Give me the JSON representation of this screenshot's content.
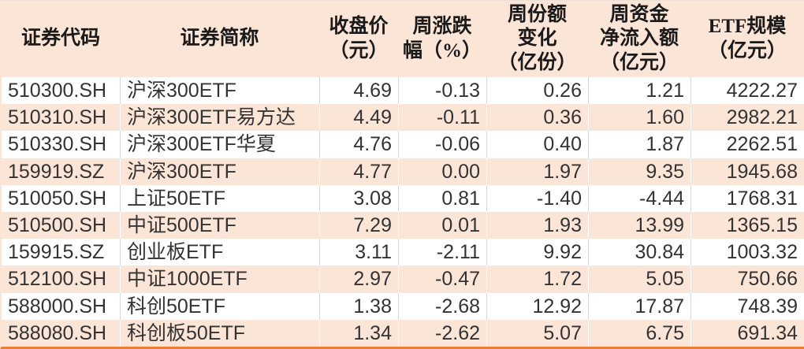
{
  "table": {
    "columns": [
      {
        "key": "code",
        "label": "证券代码",
        "align": "left"
      },
      {
        "key": "name",
        "label": "证券简称",
        "align": "left"
      },
      {
        "key": "close",
        "label": "收盘价\n（元）",
        "align": "right"
      },
      {
        "key": "chg",
        "label": "周涨跌\n幅（%）",
        "align": "right"
      },
      {
        "key": "share",
        "label": "周份额\n变化\n（亿份）",
        "align": "right"
      },
      {
        "key": "flow",
        "label": "周资金\n净流入额\n（亿元）",
        "align": "right"
      },
      {
        "key": "scale",
        "label": "ETF规模\n（亿元）",
        "align": "right"
      }
    ],
    "rows": [
      [
        "510300.SH",
        "沪深300ETF",
        "4.69",
        "-0.13",
        "0.26",
        "1.21",
        "4222.27"
      ],
      [
        "510310.SH",
        "沪深300ETF易方达",
        "4.49",
        "-0.11",
        "0.36",
        "1.60",
        "2982.21"
      ],
      [
        "510330.SH",
        "沪深300ETF华夏",
        "4.76",
        "-0.06",
        "0.40",
        "1.87",
        "2262.51"
      ],
      [
        "159919.SZ",
        "沪深300ETF",
        "4.77",
        "0.00",
        "1.97",
        "9.35",
        "1945.68"
      ],
      [
        "510050.SH",
        "上证50ETF",
        "3.08",
        "0.81",
        "-1.40",
        "-4.44",
        "1768.31"
      ],
      [
        "510500.SH",
        "中证500ETF",
        "7.29",
        "0.01",
        "1.93",
        "13.99",
        "1365.15"
      ],
      [
        "159915.SZ",
        "创业板ETF",
        "3.11",
        "-2.11",
        "9.92",
        "30.84",
        "1003.32"
      ],
      [
        "512100.SH",
        "中证1000ETF",
        "2.97",
        "-0.47",
        "1.72",
        "5.05",
        "750.66"
      ],
      [
        "588000.SH",
        "科创50ETF",
        "1.38",
        "-2.68",
        "12.92",
        "17.87",
        "748.39"
      ],
      [
        "588080.SH",
        "科创板50ETF",
        "1.34",
        "-2.62",
        "5.07",
        "6.75",
        "691.34"
      ]
    ]
  },
  "colors": {
    "header_bg": "#fbe5d6",
    "row_bg": "#ffffff",
    "row_alt_bg": "#fbe5d6",
    "bottom_border": "#ed7d31",
    "grid_line_on_white": "#d9d9d9",
    "grid_line_on_peach": "#ffffff",
    "text": "#333333",
    "header_text": "#1a1a1a"
  }
}
